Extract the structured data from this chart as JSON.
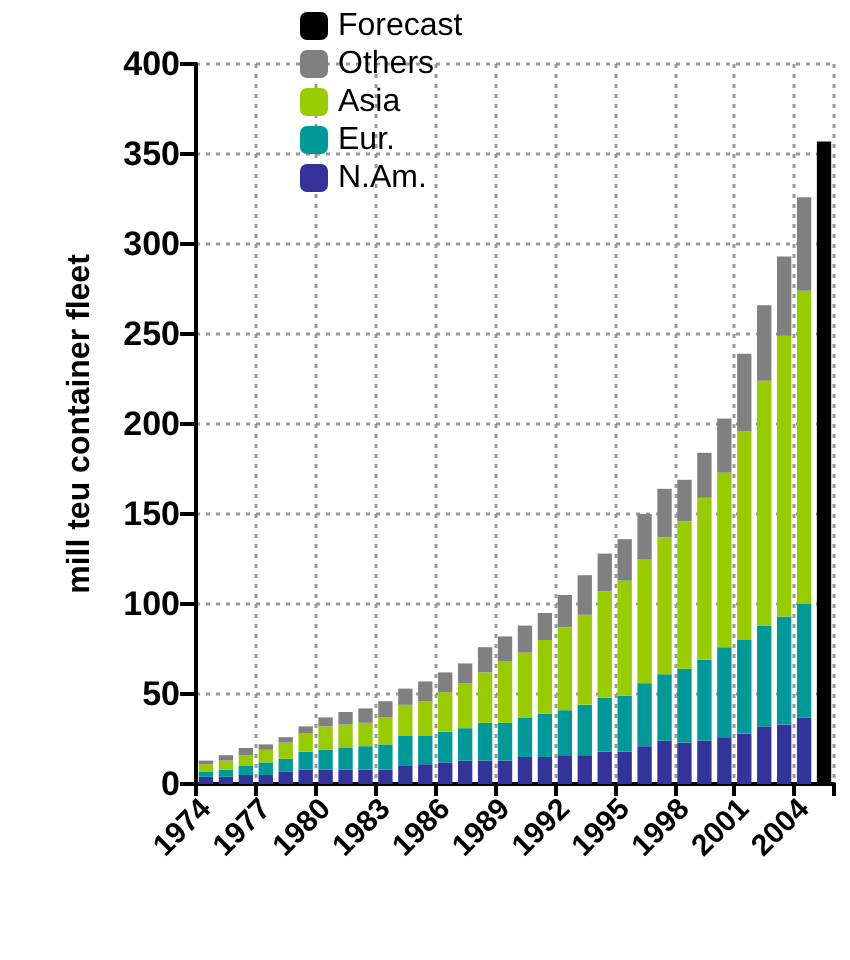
{
  "chart_data": {
    "type": "bar",
    "stacked": true,
    "ylabel": "mill teu container fleet",
    "categories": [
      "1974",
      null,
      null,
      "1977",
      null,
      null,
      "1980",
      null,
      null,
      "1983",
      null,
      null,
      "1986",
      null,
      null,
      "1989",
      null,
      null,
      "1992",
      null,
      null,
      "1995",
      null,
      null,
      "1998",
      null,
      null,
      "2001",
      null,
      null,
      "2004",
      null
    ],
    "series": [
      {
        "name": "N.Am.",
        "color": "#333399",
        "values": [
          4,
          4,
          5,
          5,
          7,
          8,
          8,
          8,
          8,
          8,
          10,
          11,
          12,
          13,
          13,
          13,
          15,
          15,
          16,
          16,
          18,
          18,
          21,
          24,
          23,
          24,
          26,
          28,
          32,
          33,
          37,
          null
        ]
      },
      {
        "name": "Eur.",
        "color": "#009999",
        "values": [
          3,
          4,
          5,
          7,
          7,
          10,
          11,
          12,
          13,
          14,
          17,
          16,
          17,
          18,
          21,
          21,
          22,
          24,
          25,
          28,
          30,
          31,
          35,
          37,
          41,
          45,
          50,
          52,
          56,
          60,
          63,
          null
        ]
      },
      {
        "name": "Asia",
        "color": "#99cc00",
        "values": [
          4,
          5,
          6,
          7,
          9,
          10,
          13,
          13,
          13,
          15,
          17,
          19,
          22,
          25,
          28,
          34,
          36,
          41,
          46,
          50,
          59,
          64,
          69,
          76,
          82,
          90,
          97,
          116,
          136,
          156,
          174,
          null
        ]
      },
      {
        "name": "Others",
        "color": "#808080",
        "values": [
          2,
          3,
          4,
          3,
          3,
          4,
          5,
          7,
          8,
          9,
          9,
          11,
          11,
          11,
          14,
          14,
          15,
          15,
          18,
          22,
          21,
          23,
          25,
          27,
          23,
          25,
          30,
          43,
          42,
          44,
          52,
          null
        ]
      },
      {
        "name": "Forecast",
        "color": "#000000",
        "values": [
          null,
          null,
          null,
          null,
          null,
          null,
          null,
          null,
          null,
          null,
          null,
          null,
          null,
          null,
          null,
          null,
          null,
          null,
          null,
          null,
          null,
          null,
          null,
          null,
          null,
          null,
          null,
          null,
          null,
          null,
          null,
          357
        ]
      }
    ],
    "ylim": [
      0,
      400
    ],
    "yticks": [
      0,
      50,
      100,
      150,
      200,
      250,
      300,
      350,
      400
    ],
    "grid": true,
    "legend": "top left"
  }
}
